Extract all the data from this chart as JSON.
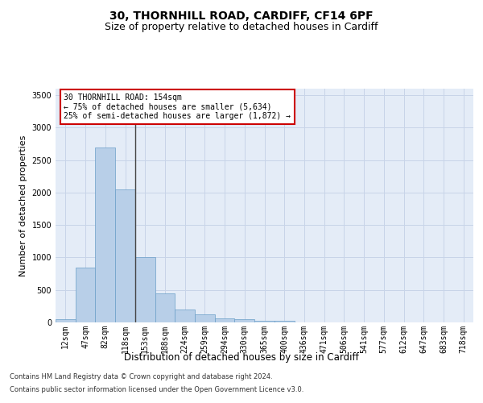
{
  "title_line1": "30, THORNHILL ROAD, CARDIFF, CF14 6PF",
  "title_line2": "Size of property relative to detached houses in Cardiff",
  "xlabel": "Distribution of detached houses by size in Cardiff",
  "ylabel": "Number of detached properties",
  "categories": [
    "12sqm",
    "47sqm",
    "82sqm",
    "118sqm",
    "153sqm",
    "188sqm",
    "224sqm",
    "259sqm",
    "294sqm",
    "330sqm",
    "365sqm",
    "400sqm",
    "436sqm",
    "471sqm",
    "506sqm",
    "541sqm",
    "577sqm",
    "612sqm",
    "647sqm",
    "683sqm",
    "718sqm"
  ],
  "values": [
    55,
    840,
    2700,
    2050,
    1000,
    450,
    200,
    130,
    65,
    50,
    30,
    20,
    0,
    0,
    0,
    0,
    0,
    0,
    0,
    0,
    0
  ],
  "bar_color": "#b8cfe8",
  "bar_edge_color": "#6a9ec8",
  "vline_color": "#444444",
  "annotation_text": "30 THORNHILL ROAD: 154sqm\n← 75% of detached houses are smaller (5,634)\n25% of semi-detached houses are larger (1,872) →",
  "annotation_box_color": "#cc0000",
  "ylim": [
    0,
    3600
  ],
  "yticks": [
    0,
    500,
    1000,
    1500,
    2000,
    2500,
    3000,
    3500
  ],
  "grid_color": "#c8d4e8",
  "bg_color": "#e4ecf7",
  "footer_line1": "Contains HM Land Registry data © Crown copyright and database right 2024.",
  "footer_line2": "Contains public sector information licensed under the Open Government Licence v3.0.",
  "title_fontsize": 10,
  "subtitle_fontsize": 9,
  "tick_fontsize": 7,
  "ylabel_fontsize": 8,
  "xlabel_fontsize": 8.5,
  "footer_fontsize": 6,
  "annotation_fontsize": 7
}
